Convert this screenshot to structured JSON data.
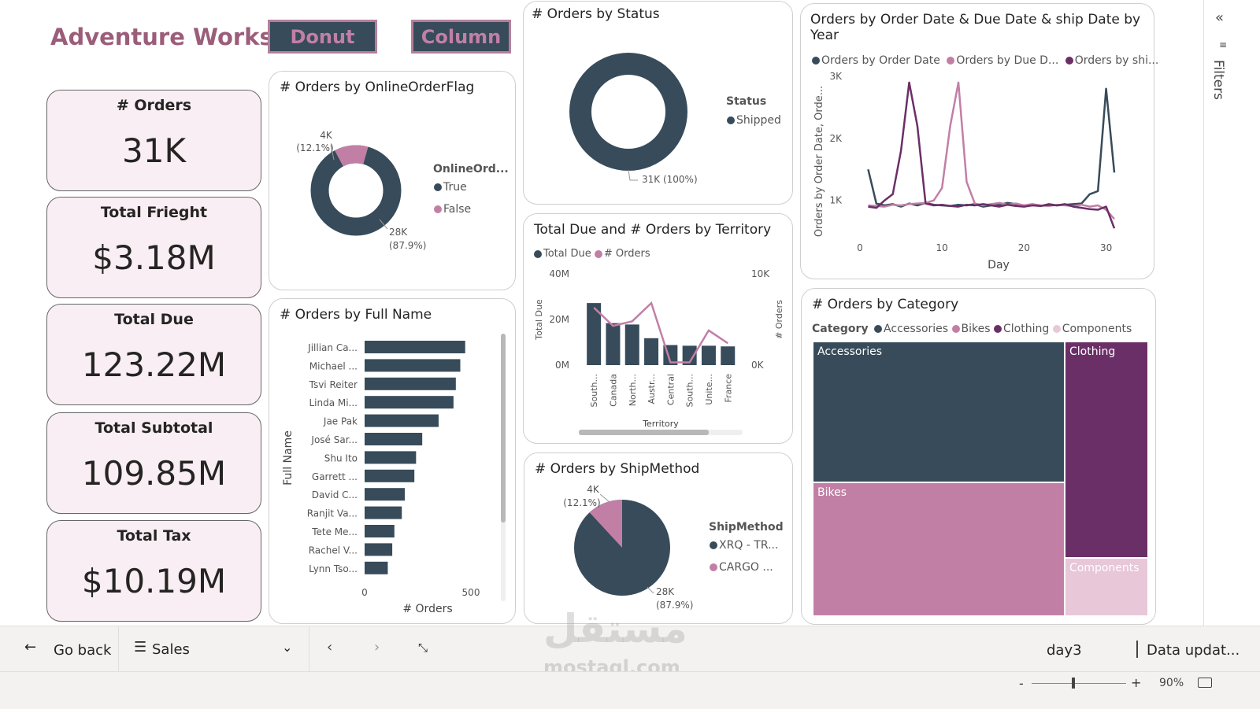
{
  "app": {
    "title": "Adventure Works",
    "buttons": {
      "donut": "Donut",
      "column": "Column"
    }
  },
  "colors": {
    "dark": "#374b5a",
    "pink": "#c27fa6",
    "purple": "#6b2f67",
    "light": "#e8c7d9"
  },
  "kpis": [
    {
      "title": "# Orders",
      "value": "31K"
    },
    {
      "title": "Total Frieght",
      "value": "$3.18M"
    },
    {
      "title": "Total Due",
      "value": "123.22M"
    },
    {
      "title": "Total Subtotal",
      "value": "109.85M"
    },
    {
      "title": "Total Tax",
      "value": "$10.19M"
    }
  ],
  "online_flag": {
    "title": "# Orders by OnlineOrderFlag",
    "legend_title": "OnlineOrd...",
    "legend": [
      "True",
      "False"
    ],
    "labels": {
      "false_value": "4K",
      "false_pct": "(12.1%)",
      "true_value": "28K",
      "true_pct": "(87.9%)"
    }
  },
  "status": {
    "title": "# Orders by Status",
    "legend_title": "Status",
    "legend": [
      "Shipped"
    ],
    "label": "31K (100%)"
  },
  "full_name": {
    "title": "# Orders by Full Name",
    "y_title": "Full Name",
    "x_title": "# Orders",
    "x_ticks": [
      "0",
      "500"
    ]
  },
  "territory": {
    "title": "Total Due and # Orders by Territory",
    "legend": [
      "Total Due",
      "# Orders"
    ],
    "y_title": "Total Due",
    "y2_title": "# Orders",
    "x_title": "Territory",
    "y_ticks": [
      "40M",
      "20M",
      "0M"
    ],
    "y2_ticks": [
      "10K",
      "0K"
    ]
  },
  "ship": {
    "title": "# Orders by ShipMethod",
    "legend_title": "ShipMethod",
    "legend": [
      "XRQ - TR...",
      "CARGO ..."
    ],
    "labels": {
      "cargo_value": "4K",
      "cargo_pct": "(12.1%)",
      "xrq_value": "28K",
      "xrq_pct": "(87.9%)"
    }
  },
  "dates": {
    "title": "Orders by Order Date & Due Date & ship Date by Year",
    "legend": [
      "Orders by Order Date",
      "Orders by Due D...",
      "Orders by shi..."
    ],
    "y_title": "Orders by Order Date, Orde...",
    "x_title": "Day"
  },
  "category": {
    "title": "# Orders by Category",
    "legend_title": "Category",
    "legend": [
      "Accessories",
      "Bikes",
      "Clothing",
      "Components"
    ],
    "tiles": [
      "Accessories",
      "Bikes",
      "Clothing",
      "Components"
    ]
  },
  "chart_data": [
    {
      "type": "pie",
      "title": "# Orders by OnlineOrderFlag",
      "categories": [
        "True",
        "False"
      ],
      "values": [
        27659,
        3806
      ],
      "percent": [
        87.9,
        12.1
      ],
      "donut": true
    },
    {
      "type": "pie",
      "title": "# Orders by Status",
      "categories": [
        "Shipped"
      ],
      "values": [
        31465
      ],
      "percent": [
        100
      ],
      "donut": true
    },
    {
      "type": "bar",
      "orientation": "horizontal",
      "title": "# Orders by Full Name",
      "categories": [
        "Jillian Ca...",
        "Michael ...",
        "Tsvi Reiter",
        "Linda Mi...",
        "Jae Pak",
        "José Sar...",
        "Shu Ito",
        "Garrett ...",
        "David C...",
        "Ranjit Va...",
        "Tete Me...",
        "Rachel V...",
        "Lynn Tso..."
      ],
      "values": [
        473,
        450,
        429,
        418,
        348,
        271,
        242,
        234,
        189,
        175,
        140,
        130,
        109
      ],
      "xlabel": "# Orders",
      "ylabel": "Full Name",
      "xlim": [
        0,
        550
      ]
    },
    {
      "type": "bar",
      "title": "Total Due and # Orders by Territory",
      "categories": [
        "South...",
        "Canada",
        "North...",
        "Austr...",
        "Central",
        "South...",
        "Unite...",
        "France"
      ],
      "series": [
        {
          "name": "Total Due",
          "chart": "bar",
          "values": [
            27.2,
            18.4,
            17.8,
            11.8,
            8.8,
            8.5,
            8.5,
            8.2
          ]
        },
        {
          "name": "# Orders",
          "chart": "line",
          "axis": "right",
          "values": [
            6300,
            4300,
            4800,
            6800,
            300,
            300,
            3800,
            2400
          ]
        }
      ],
      "xlabel": "Territory",
      "ylabel": "Total Due",
      "y2label": "# Orders",
      "ylim": [
        0,
        40
      ],
      "y2lim": [
        0,
        10000
      ]
    },
    {
      "type": "pie",
      "title": "# Orders by ShipMethod",
      "categories": [
        "XRQ - TR...",
        "CARGO ..."
      ],
      "values": [
        27659,
        3806
      ],
      "percent": [
        87.9,
        12.1
      ]
    },
    {
      "type": "line",
      "title": "Orders by Order Date & Due Date & ship Date by Year",
      "x": [
        1,
        2,
        3,
        4,
        5,
        6,
        7,
        8,
        9,
        10,
        11,
        12,
        13,
        14,
        15,
        16,
        17,
        18,
        19,
        20,
        21,
        22,
        23,
        24,
        25,
        26,
        27,
        28,
        29,
        30,
        31
      ],
      "series": [
        {
          "name": "Orders by Order Date",
          "values": [
            1500,
            950,
            920,
            940,
            900,
            950,
            920,
            960,
            930,
            920,
            910,
            930,
            920,
            940,
            900,
            920,
            930,
            960,
            940,
            920,
            930,
            910,
            940,
            920,
            930,
            940,
            950,
            1100,
            1150,
            2800,
            1450
          ]
        },
        {
          "name": "Orders by Due Date",
          "values": [
            920,
            910,
            900,
            930,
            920,
            940,
            950,
            960,
            1000,
            1200,
            2200,
            2900,
            1300,
            950,
            920,
            940,
            960,
            930,
            950,
            920,
            940,
            920,
            910,
            930,
            920,
            910,
            930,
            900,
            920,
            850,
            700
          ]
        },
        {
          "name": "Orders by ship Date",
          "values": [
            900,
            880,
            1000,
            1100,
            1800,
            2900,
            2200,
            950,
            920,
            930,
            910,
            900,
            930,
            920,
            940,
            920,
            900,
            930,
            910,
            900,
            920,
            910,
            930,
            920,
            940,
            900,
            880,
            860,
            850,
            900,
            550
          ]
        }
      ],
      "xlabel": "Day",
      "ylabel": "Orders by Order Date, Orde...",
      "xlim": [
        0,
        31
      ],
      "ylim": [
        400,
        3000
      ],
      "y_ticks": [
        "1K",
        "2K",
        "3K"
      ],
      "x_ticks": [
        "0",
        "10",
        "20",
        "30"
      ]
    },
    {
      "type": "treemap",
      "title": "# Orders by Category",
      "categories": [
        "Accessories",
        "Bikes",
        "Clothing",
        "Components"
      ],
      "values": [
        13900,
        10400,
        5100,
        2100
      ]
    }
  ],
  "bottom": {
    "go_back": "Go back",
    "page": "Sales",
    "page_name": "day3",
    "data_updated": "Data updat...",
    "zoom": "90%",
    "filters": "Filters"
  },
  "watermark": {
    "arabic": "مستقل",
    "domain": "mostaql.com"
  }
}
